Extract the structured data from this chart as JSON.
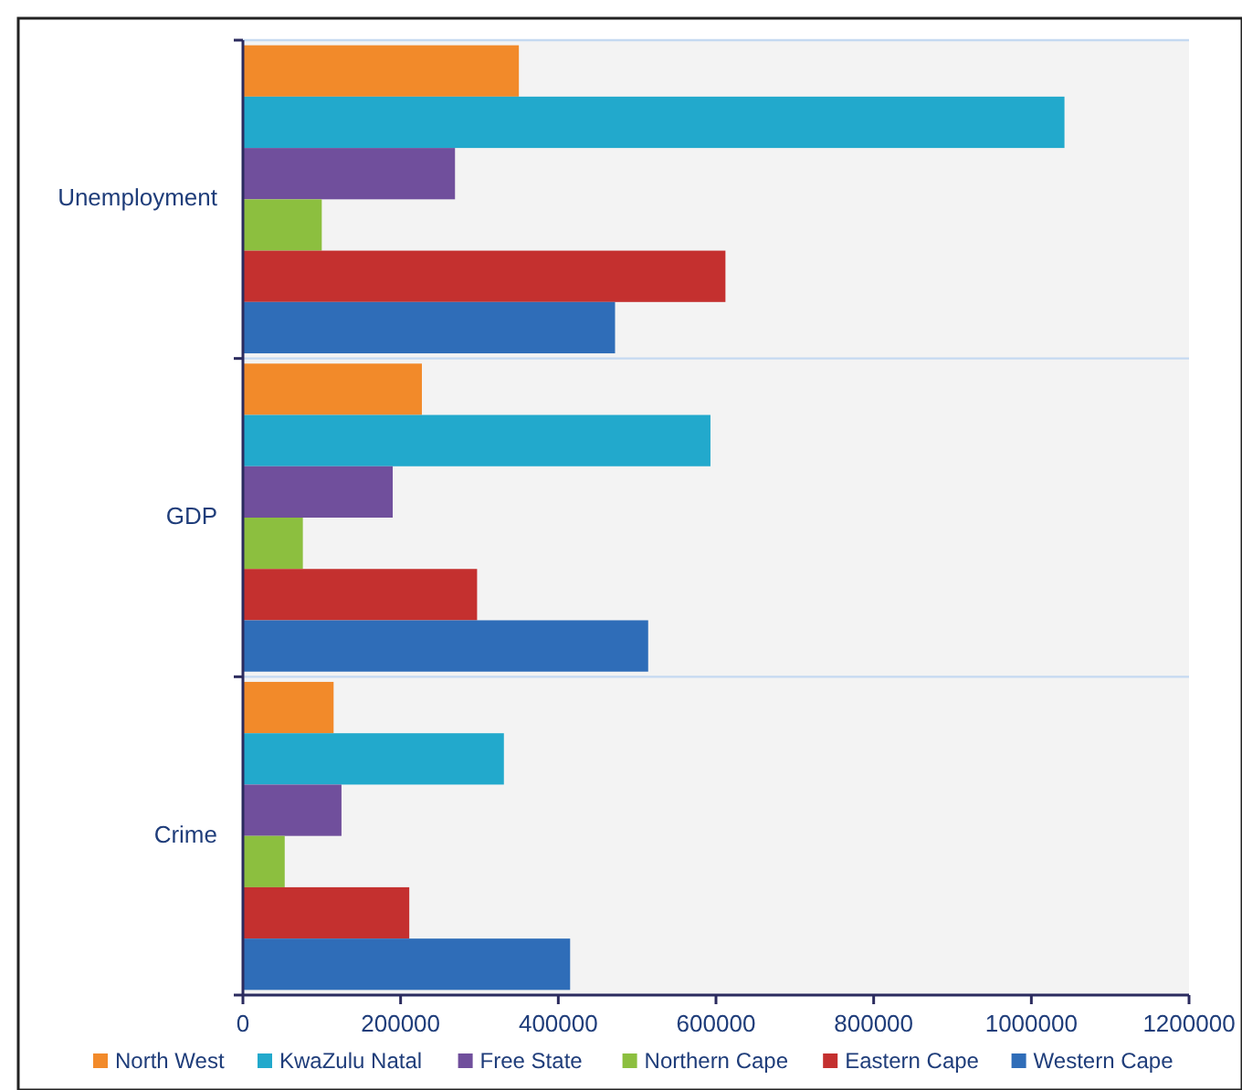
{
  "chart_data": {
    "type": "bar",
    "orientation": "horizontal",
    "categories": [
      "Unemployment",
      "GDP",
      "Crime"
    ],
    "series": [
      {
        "name": "North West",
        "color": "#f28a2a",
        "values": [
          350000,
          227000,
          115000
        ]
      },
      {
        "name": "KwaZulu Natal",
        "color": "#22a9cc",
        "values": [
          1042000,
          593000,
          331000
        ]
      },
      {
        "name": "Free State",
        "color": "#704f9c",
        "values": [
          269000,
          190000,
          125000
        ]
      },
      {
        "name": "Northern Cape",
        "color": "#8cbf3f",
        "values": [
          100000,
          76000,
          53000
        ]
      },
      {
        "name": "Eastern Cape",
        "color": "#c4302f",
        "values": [
          612000,
          297000,
          211000
        ]
      },
      {
        "name": "Western Cape",
        "color": "#2f6db8",
        "values": [
          472000,
          514000,
          415000
        ]
      }
    ],
    "xlim": [
      0,
      1200000
    ],
    "xticks": [
      0,
      200000,
      400000,
      600000,
      800000,
      1000000,
      1200000
    ],
    "grid": "y",
    "legend": "bottom"
  }
}
